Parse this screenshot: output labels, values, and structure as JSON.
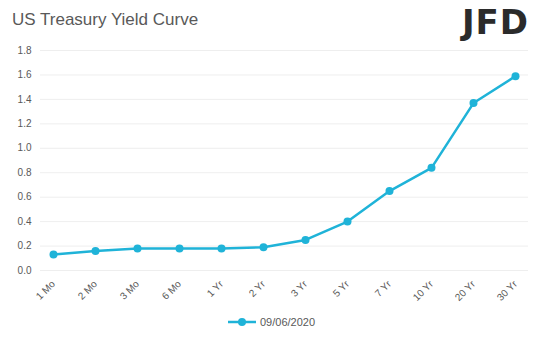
{
  "chart_data": {
    "type": "line",
    "title": "US Treasury Yield Curve",
    "logo": "JFD",
    "categories": [
      "1 Mo",
      "2 Mo",
      "3 Mo",
      "6 Mo",
      "1 Yr",
      "2 Yr",
      "3 Yr",
      "5 Yr",
      "7 Yr",
      "10 Yr",
      "20 Yr",
      "30 Yr"
    ],
    "series": [
      {
        "name": "09/06/2020",
        "color": "#1fb3d8",
        "marker": "circle",
        "values": [
          0.13,
          0.16,
          0.18,
          0.18,
          0.18,
          0.19,
          0.25,
          0.4,
          0.65,
          0.84,
          1.37,
          1.59
        ]
      }
    ],
    "ylim": [
      0,
      1.8
    ],
    "yticks": [
      {
        "value": 0,
        "label": "0.0"
      },
      0.2,
      0.4,
      0.6,
      0.8,
      {
        "value": 1,
        "label": "1.0"
      },
      1.2,
      1.4,
      1.6,
      1.8
    ],
    "grid": true,
    "legend": "bottom"
  }
}
